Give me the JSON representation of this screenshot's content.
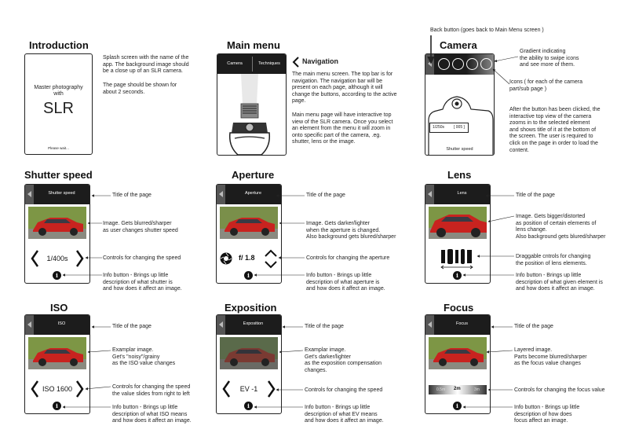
{
  "intro": {
    "title": "Introduction",
    "screen_line1": "Master photography",
    "screen_line2": "with",
    "screen_big": "SLR",
    "screen_footer": "Please wait...",
    "note1": "Splash screen with the name of the\napp. The background image should\nbe a close up of an SLR camera.",
    "note2": "The page should be shown for\nabout 2 seconds."
  },
  "main_menu": {
    "title": "Main menu",
    "tab1": "Camera",
    "tab2": "Techniques",
    "nav_heading": "Navigation",
    "note1": "The main menu screen. The top bar is for\nnavigation. The navigation bar will be\npresent on each page, although it will\nchange the buttons, according to the active\npage.",
    "note2": "Main menu page will have interactive top\nview of the SLR camera. Once you select\nan element from the menu it will zoom in\nonto specific part of the camera, .eg.\nshutter, lens or the image."
  },
  "camera": {
    "title": "Camera",
    "back_note": "Back button (goes back to Main Menu screen )",
    "gradient_note": "Gradient indicating\nthe ability to swipe icons\nand see more of them.",
    "icons_note": "Icons ( for each of the camera\npart/sub page )",
    "after_note": "After the button has been clicked, the\ninteractive top view of the camera\nzooms in to the selected element\nand shows title of it at the bottom of\nthe screen. The user is required to\nclick on the page in order to load the\ncontent.",
    "lcd_left": "1/250s",
    "lcd_right": "[ 005 ]",
    "footer": "Shutter speed"
  },
  "shutter": {
    "title": "Shutter speed",
    "bar": "Shutter speed",
    "control_value": "1/400s",
    "info": "i",
    "note_title": "Title of the page",
    "note_image": "Image. Gets blurred/sharper\nas user changes shutter speed",
    "note_controls": "Controls for changing the speed",
    "note_info": "Info button - Brings up little\ndescription of what shutter is\nand how does it affect an image."
  },
  "aperture": {
    "title": "Aperture",
    "bar": "Aperture",
    "control_value": "f/ 1.8",
    "info": "i",
    "note_title": "Title of the page",
    "note_image": "Image. Gets darker/lighter\nwhen the aperture is changed.\nAlso background gets blured/sharper",
    "note_controls": "Controls for changing the aperture",
    "note_info": "Info button - Brings up little\ndescription of what aperture is\nand how does it affect an image."
  },
  "lens": {
    "title": "Lens",
    "bar": "Lens",
    "info": "i",
    "note_title": "Title of the page",
    "note_image": "Image. Gets bigger/distorted\nas position of certain elements of\nlens change.\nAlso background gets blured/sharper",
    "note_controls": "Draggable cntrols for changing\nthe position of lens elements.",
    "note_info": "Info button - Brings up little\ndescription of what given element is\nand how does it affect an image."
  },
  "iso": {
    "title": "ISO",
    "bar": "ISO",
    "control_value": "ISO 1600",
    "info": "i",
    "note_title": "Title of the page",
    "note_image": "Examplar image.\nGet's \"noisy\"/grainy\nas the ISO value changes",
    "note_controls": "Controls for changing the speed\nthe value slides from right to left",
    "note_info": "Info button - Brings up little\ndescription of what ISO means\nand how does it affect an image."
  },
  "exposition": {
    "title": "Exposition",
    "bar": "Exposition",
    "control_value": "EV -1",
    "info": "i",
    "note_title": "Title of the page",
    "note_image": "Examplar image.\nGet's darker/lighter\nas the exposition compensation\nchanges.",
    "note_controls": "Controls for changing the speed",
    "note_info": "Info button - Brings up little\ndescription of what EV means\nand how does it affect an image."
  },
  "focus": {
    "title": "Focus",
    "bar": "Focus",
    "slider_left": "0.5m",
    "slider_mid": "2m",
    "slider_right": "3m",
    "info": "i",
    "note_title": "Title of the page",
    "note_image": "Layered image.\nParts become blurred/sharper\nas the focus value changes",
    "note_controls": "Controls for changing the focus value",
    "note_info": "Info button - Brings up little\ndescription of how does\nfocus affect an image."
  },
  "colors": {
    "topbar": "#1c1c1c",
    "back_button": "#555555",
    "car_red": "#c8231f",
    "grass": "#6f8a3c"
  }
}
